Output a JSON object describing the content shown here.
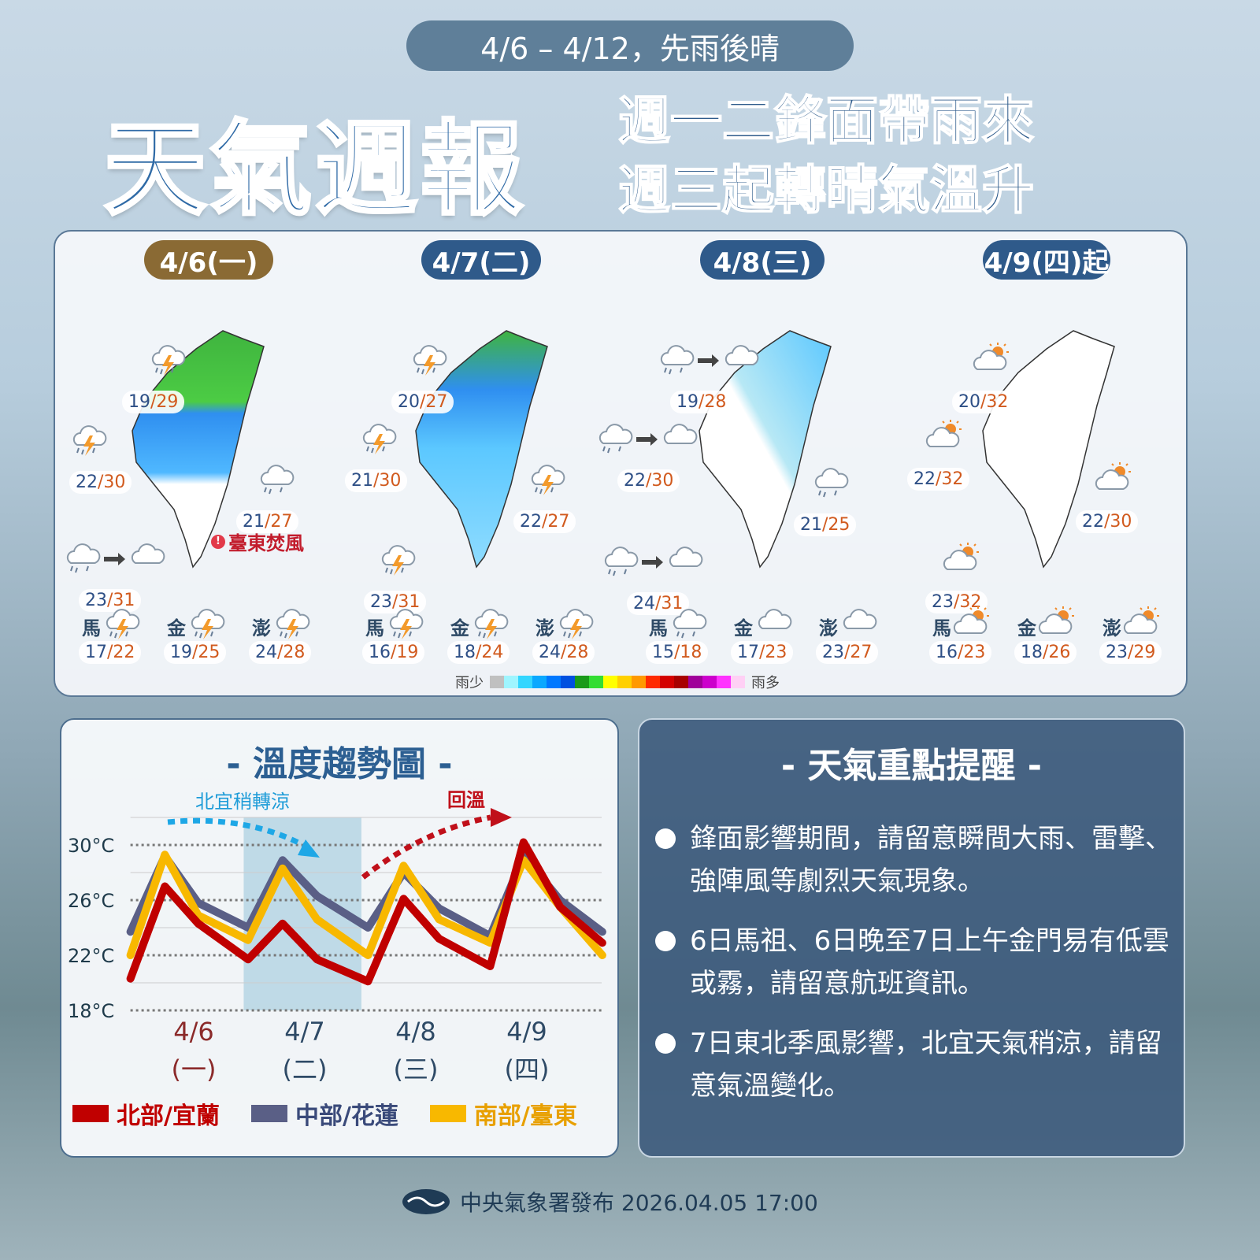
{
  "header": {
    "period": "4/6 – 4/12，先雨後晴",
    "title": "天氣週報",
    "subtitle_line1": "週一二鋒面帶雨來",
    "subtitle_line2": "週三起轉晴氣溫升"
  },
  "colors": {
    "accent": "#2f6aa6",
    "day1_pill": "#8a6a34",
    "pill": "#2f5a8a",
    "low": "#2e4f86",
    "high": "#d15a1e",
    "north": "#c00000",
    "central": "#5a5f86",
    "south": "#f8b800"
  },
  "days": [
    {
      "date": "4/6(一)",
      "cities": [
        {
          "icon": "thunder-rain",
          "lo": "19",
          "hi": "29"
        },
        {
          "icon": "thunder-rain",
          "lo": "22",
          "hi": "30"
        },
        {
          "icon": "rain",
          "lo": "21",
          "hi": "27"
        },
        {
          "icon": "rain-to-cloud",
          "lo": "23",
          "hi": "31"
        }
      ],
      "warning": "臺東焚風",
      "islands": [
        {
          "name": "馬",
          "icon": "thunder-rain",
          "lo": "17",
          "hi": "22"
        },
        {
          "name": "金",
          "icon": "thunder-rain",
          "lo": "19",
          "hi": "25"
        },
        {
          "name": "澎",
          "icon": "thunder-rain",
          "lo": "24",
          "hi": "28"
        }
      ]
    },
    {
      "date": "4/7(二)",
      "cities": [
        {
          "icon": "thunder-rain",
          "lo": "20",
          "hi": "27"
        },
        {
          "icon": "thunder-rain",
          "lo": "21",
          "hi": "30"
        },
        {
          "icon": "thunder-rain",
          "lo": "22",
          "hi": "27"
        },
        {
          "icon": "thunder-rain",
          "lo": "23",
          "hi": "31"
        }
      ],
      "islands": [
        {
          "name": "馬",
          "icon": "thunder-rain",
          "lo": "16",
          "hi": "19"
        },
        {
          "name": "金",
          "icon": "thunder-rain",
          "lo": "18",
          "hi": "24"
        },
        {
          "name": "澎",
          "icon": "thunder-rain",
          "lo": "24",
          "hi": "28"
        }
      ]
    },
    {
      "date": "4/8(三)",
      "cities": [
        {
          "icon": "rain-to-cloud",
          "lo": "19",
          "hi": "28"
        },
        {
          "icon": "rain-to-cloud",
          "lo": "22",
          "hi": "30"
        },
        {
          "icon": "rain",
          "lo": "21",
          "hi": "25"
        },
        {
          "icon": "rain-to-cloud",
          "lo": "24",
          "hi": "31"
        }
      ],
      "islands": [
        {
          "name": "馬",
          "icon": "rain",
          "lo": "15",
          "hi": "18"
        },
        {
          "name": "金",
          "icon": "cloud",
          "lo": "17",
          "hi": "23"
        },
        {
          "name": "澎",
          "icon": "cloud",
          "lo": "23",
          "hi": "27"
        }
      ]
    },
    {
      "date": "4/9(四)起",
      "cities": [
        {
          "icon": "sun-cloud",
          "lo": "20",
          "hi": "32"
        },
        {
          "icon": "sun-cloud",
          "lo": "22",
          "hi": "32"
        },
        {
          "icon": "sun-cloud",
          "lo": "22",
          "hi": "30"
        },
        {
          "icon": "sun-cloud",
          "lo": "23",
          "hi": "32"
        }
      ],
      "islands": [
        {
          "name": "馬",
          "icon": "sun-cloud",
          "lo": "16",
          "hi": "23"
        },
        {
          "name": "金",
          "icon": "sun-cloud",
          "lo": "18",
          "hi": "26"
        },
        {
          "name": "澎",
          "icon": "sun-cloud",
          "lo": "23",
          "hi": "29"
        }
      ]
    }
  ],
  "rain_legend": {
    "less": "雨少",
    "more": "雨多",
    "colors": [
      "#c0c0c0",
      "#9ff5ff",
      "#33d6ff",
      "#0aa8ff",
      "#0078ff",
      "#0050e0",
      "#1a9a1a",
      "#33dd33",
      "#ffff00",
      "#ffd000",
      "#ff9900",
      "#ff2a00",
      "#d40000",
      "#a80000",
      "#a0009a",
      "#cc00cc",
      "#ff33ff",
      "#ffd0f5"
    ]
  },
  "chart_data": {
    "type": "line",
    "title": "- 溫度趨勢圖 -",
    "x_ticks": [
      {
        "value": 0,
        "label": "4/6",
        "sub": "(一)"
      },
      {
        "value": 1,
        "label": "4/7",
        "sub": "(二)"
      },
      {
        "value": 2,
        "label": "4/8",
        "sub": "(三)"
      },
      {
        "value": 3,
        "label": "4/9",
        "sub": "(四)"
      }
    ],
    "y_ticks": [
      {
        "value": 30,
        "label": "30°C"
      },
      {
        "value": 26,
        "label": "26°C"
      },
      {
        "value": 22,
        "label": "22°C"
      },
      {
        "value": 18,
        "label": "18°C"
      }
    ],
    "ylim": [
      18,
      32
    ],
    "xlim": [
      -0.57,
      3.68
    ],
    "highlight_range": [
      0.45,
      1.51
    ],
    "annotations": {
      "cool": "北宜稍轉涼",
      "warm": "回溫"
    },
    "series": [
      {
        "name": "北部/宜蘭",
        "color": "#c00000",
        "x": [
          -0.57,
          -0.26,
          0.04,
          0.49,
          0.8,
          1.11,
          1.57,
          1.89,
          2.21,
          2.67,
          2.97,
          3.3,
          3.68
        ],
        "y": [
          20.3,
          27.0,
          24.3,
          21.7,
          24.3,
          21.7,
          20.1,
          26.1,
          23.2,
          21.2,
          30.2,
          25.5,
          22.9
        ]
      },
      {
        "name": "中部/花蓮",
        "color": "#5a5f86",
        "x": [
          -0.57,
          -0.26,
          0.04,
          0.49,
          0.8,
          1.11,
          1.57,
          1.89,
          2.21,
          2.67,
          2.97,
          3.3,
          3.68
        ],
        "y": [
          23.7,
          29.2,
          25.8,
          24.0,
          28.9,
          26.3,
          24.0,
          28.0,
          25.4,
          23.4,
          29.2,
          26.0,
          23.7
        ]
      },
      {
        "name": "南部/臺東",
        "color": "#f8b800",
        "x": [
          -0.57,
          -0.26,
          0.04,
          0.49,
          0.8,
          1.11,
          1.57,
          1.89,
          2.21,
          2.67,
          2.97,
          3.3,
          3.68
        ],
        "y": [
          22.0,
          29.3,
          24.9,
          23.1,
          28.3,
          24.6,
          22.0,
          28.5,
          24.6,
          22.9,
          28.9,
          25.5,
          22.0
        ]
      }
    ]
  },
  "notes": {
    "title": "- 天氣重點提醒 -",
    "items": [
      "鋒面影響期間，請留意瞬間大雨、雷擊、強陣風等劇烈天氣現象。",
      "6日馬祖、6日晚至7日上午金門易有低雲或霧，請留意航班資訊。",
      "7日東北季風影響，北宜天氣稍涼，請留意氣溫變化。"
    ]
  },
  "footer": {
    "text": "中央氣象署發布 2026.04.05 17:00"
  }
}
